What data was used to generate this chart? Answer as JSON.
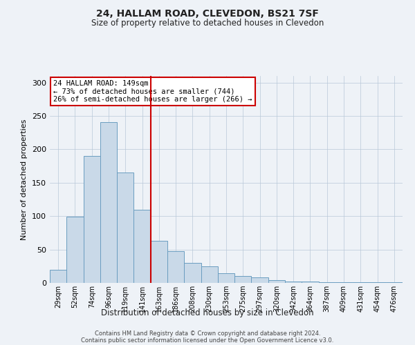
{
  "title": "24, HALLAM ROAD, CLEVEDON, BS21 7SF",
  "subtitle": "Size of property relative to detached houses in Clevedon",
  "xlabel": "Distribution of detached houses by size in Clevedon",
  "ylabel": "Number of detached properties",
  "categories": [
    "29sqm",
    "52sqm",
    "74sqm",
    "96sqm",
    "119sqm",
    "141sqm",
    "163sqm",
    "186sqm",
    "208sqm",
    "230sqm",
    "253sqm",
    "275sqm",
    "297sqm",
    "320sqm",
    "342sqm",
    "364sqm",
    "387sqm",
    "409sqm",
    "431sqm",
    "454sqm",
    "476sqm"
  ],
  "values": [
    20,
    99,
    190,
    241,
    165,
    110,
    63,
    48,
    30,
    25,
    14,
    10,
    8,
    4,
    2,
    2,
    1,
    1,
    1,
    1,
    1
  ],
  "bar_color": "#c9d9e8",
  "bar_edge_color": "#6a9dc0",
  "vline_x_index": 5,
  "vline_color": "#cc0000",
  "annotation_title": "24 HALLAM ROAD: 149sqm",
  "annotation_line1": "← 73% of detached houses are smaller (744)",
  "annotation_line2": "26% of semi-detached houses are larger (266) →",
  "annotation_box_color": "#cc0000",
  "ylim": [
    0,
    310
  ],
  "yticks": [
    0,
    50,
    100,
    150,
    200,
    250,
    300
  ],
  "footer1": "Contains HM Land Registry data © Crown copyright and database right 2024.",
  "footer2": "Contains public sector information licensed under the Open Government Licence v3.0.",
  "bg_color": "#eef2f7",
  "plot_bg_color": "#eef2f7"
}
